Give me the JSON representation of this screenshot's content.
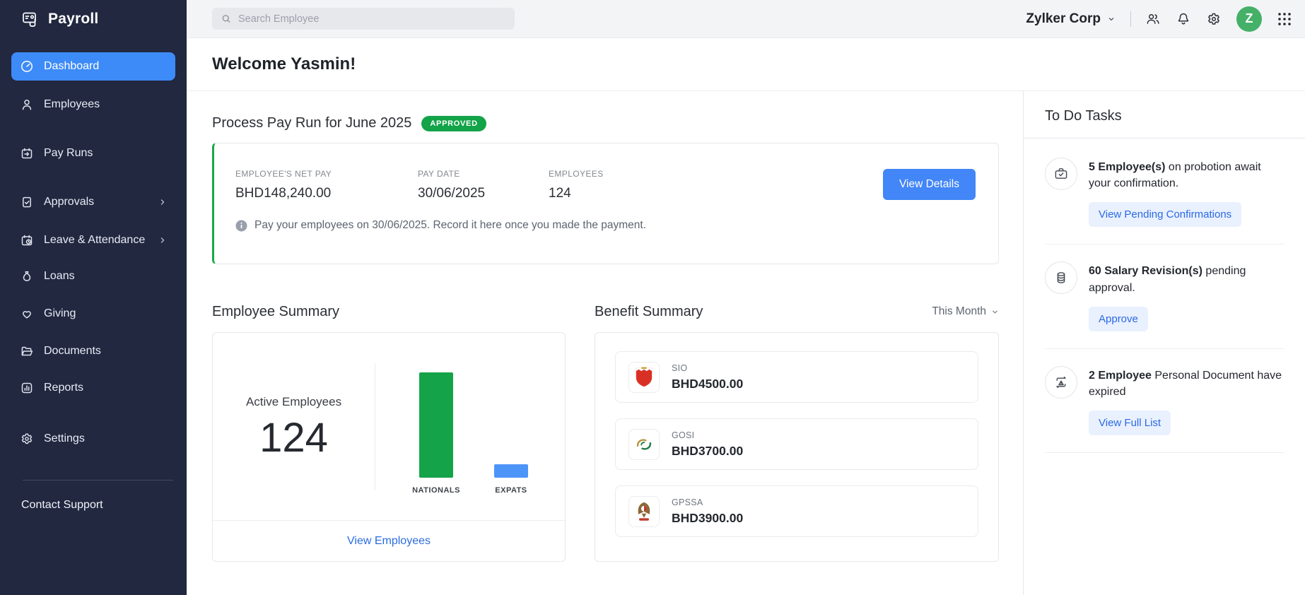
{
  "app": {
    "name": "Payroll",
    "company": "Zylker Corp",
    "avatar_initial": "Z"
  },
  "topbar": {
    "search_placeholder": "Search Employee"
  },
  "sidebar": {
    "items": [
      {
        "label": "Dashboard",
        "active": true
      },
      {
        "label": "Employees"
      },
      {
        "label": "Pay Runs"
      },
      {
        "label": "Approvals",
        "has_submenu": true
      },
      {
        "label": "Leave & Attendance",
        "has_submenu": true
      },
      {
        "label": "Loans"
      },
      {
        "label": "Giving"
      },
      {
        "label": "Documents"
      },
      {
        "label": "Reports"
      },
      {
        "label": "Settings"
      }
    ],
    "support_label": "Contact Support"
  },
  "welcome": {
    "title": "Welcome Yasmin!"
  },
  "payrun": {
    "title": "Process Pay Run for June 2025",
    "status_badge": "APPROVED",
    "stats": [
      {
        "label": "EMPLOYEE'S NET PAY",
        "value": "BHD148,240.00"
      },
      {
        "label": "PAY DATE",
        "value": "30/06/2025"
      },
      {
        "label": "EMPLOYEES",
        "value": "124"
      }
    ],
    "view_details_label": "View Details",
    "info_text": "Pay your employees on 30/06/2025. Record it here once you made the payment."
  },
  "employee_summary": {
    "title": "Employee Summary",
    "active_label": "Active Employees",
    "active_count": "124",
    "link_label": "View Employees"
  },
  "chart_data": {
    "type": "bar",
    "title": "Employee Summary",
    "categories": [
      "NATIONALS",
      "EXPATS"
    ],
    "values": [
      110,
      14
    ],
    "colors": [
      "#14a348",
      "#4d94f8"
    ],
    "ylabel": "",
    "xlabel": "",
    "axis_visible": false,
    "note": "bar values estimated from heights; total active employees shown = 124"
  },
  "benefit_summary": {
    "title": "Benefit Summary",
    "period_filter": "This Month",
    "items": [
      {
        "name": "SIO",
        "amount": "BHD4500.00",
        "icon": "bahrain-sio-logo"
      },
      {
        "name": "GOSI",
        "amount": "BHD3700.00",
        "icon": "gosi-logo"
      },
      {
        "name": "GPSSA",
        "amount": "BHD3900.00",
        "icon": "uae-gpssa-logo"
      }
    ]
  },
  "todo": {
    "title": "To Do Tasks",
    "tasks": [
      {
        "bold": "5 Employee(s)",
        "rest": " on probotion await your confirmation.",
        "action": "View Pending Confirmations",
        "icon": "briefcase-check-icon"
      },
      {
        "bold": "60 Salary Revision(s)",
        "rest": " pending approval.",
        "action": "Approve",
        "icon": "coins-icon"
      },
      {
        "bold": "2 Employee",
        "rest": " Personal Document have expired",
        "action": "View Full List",
        "icon": "calendar-alert-icon"
      }
    ]
  },
  "colors": {
    "sidebar_bg": "#212840",
    "active_item": "#3d8bf8",
    "approved_badge": "#13a348",
    "primary_button": "#4286f7",
    "link": "#2b6ce0",
    "task_button_bg": "#e9f0fe",
    "avatar_bg": "#45b068",
    "bar_nationals": "#14a348",
    "bar_expats": "#4d94f8"
  }
}
